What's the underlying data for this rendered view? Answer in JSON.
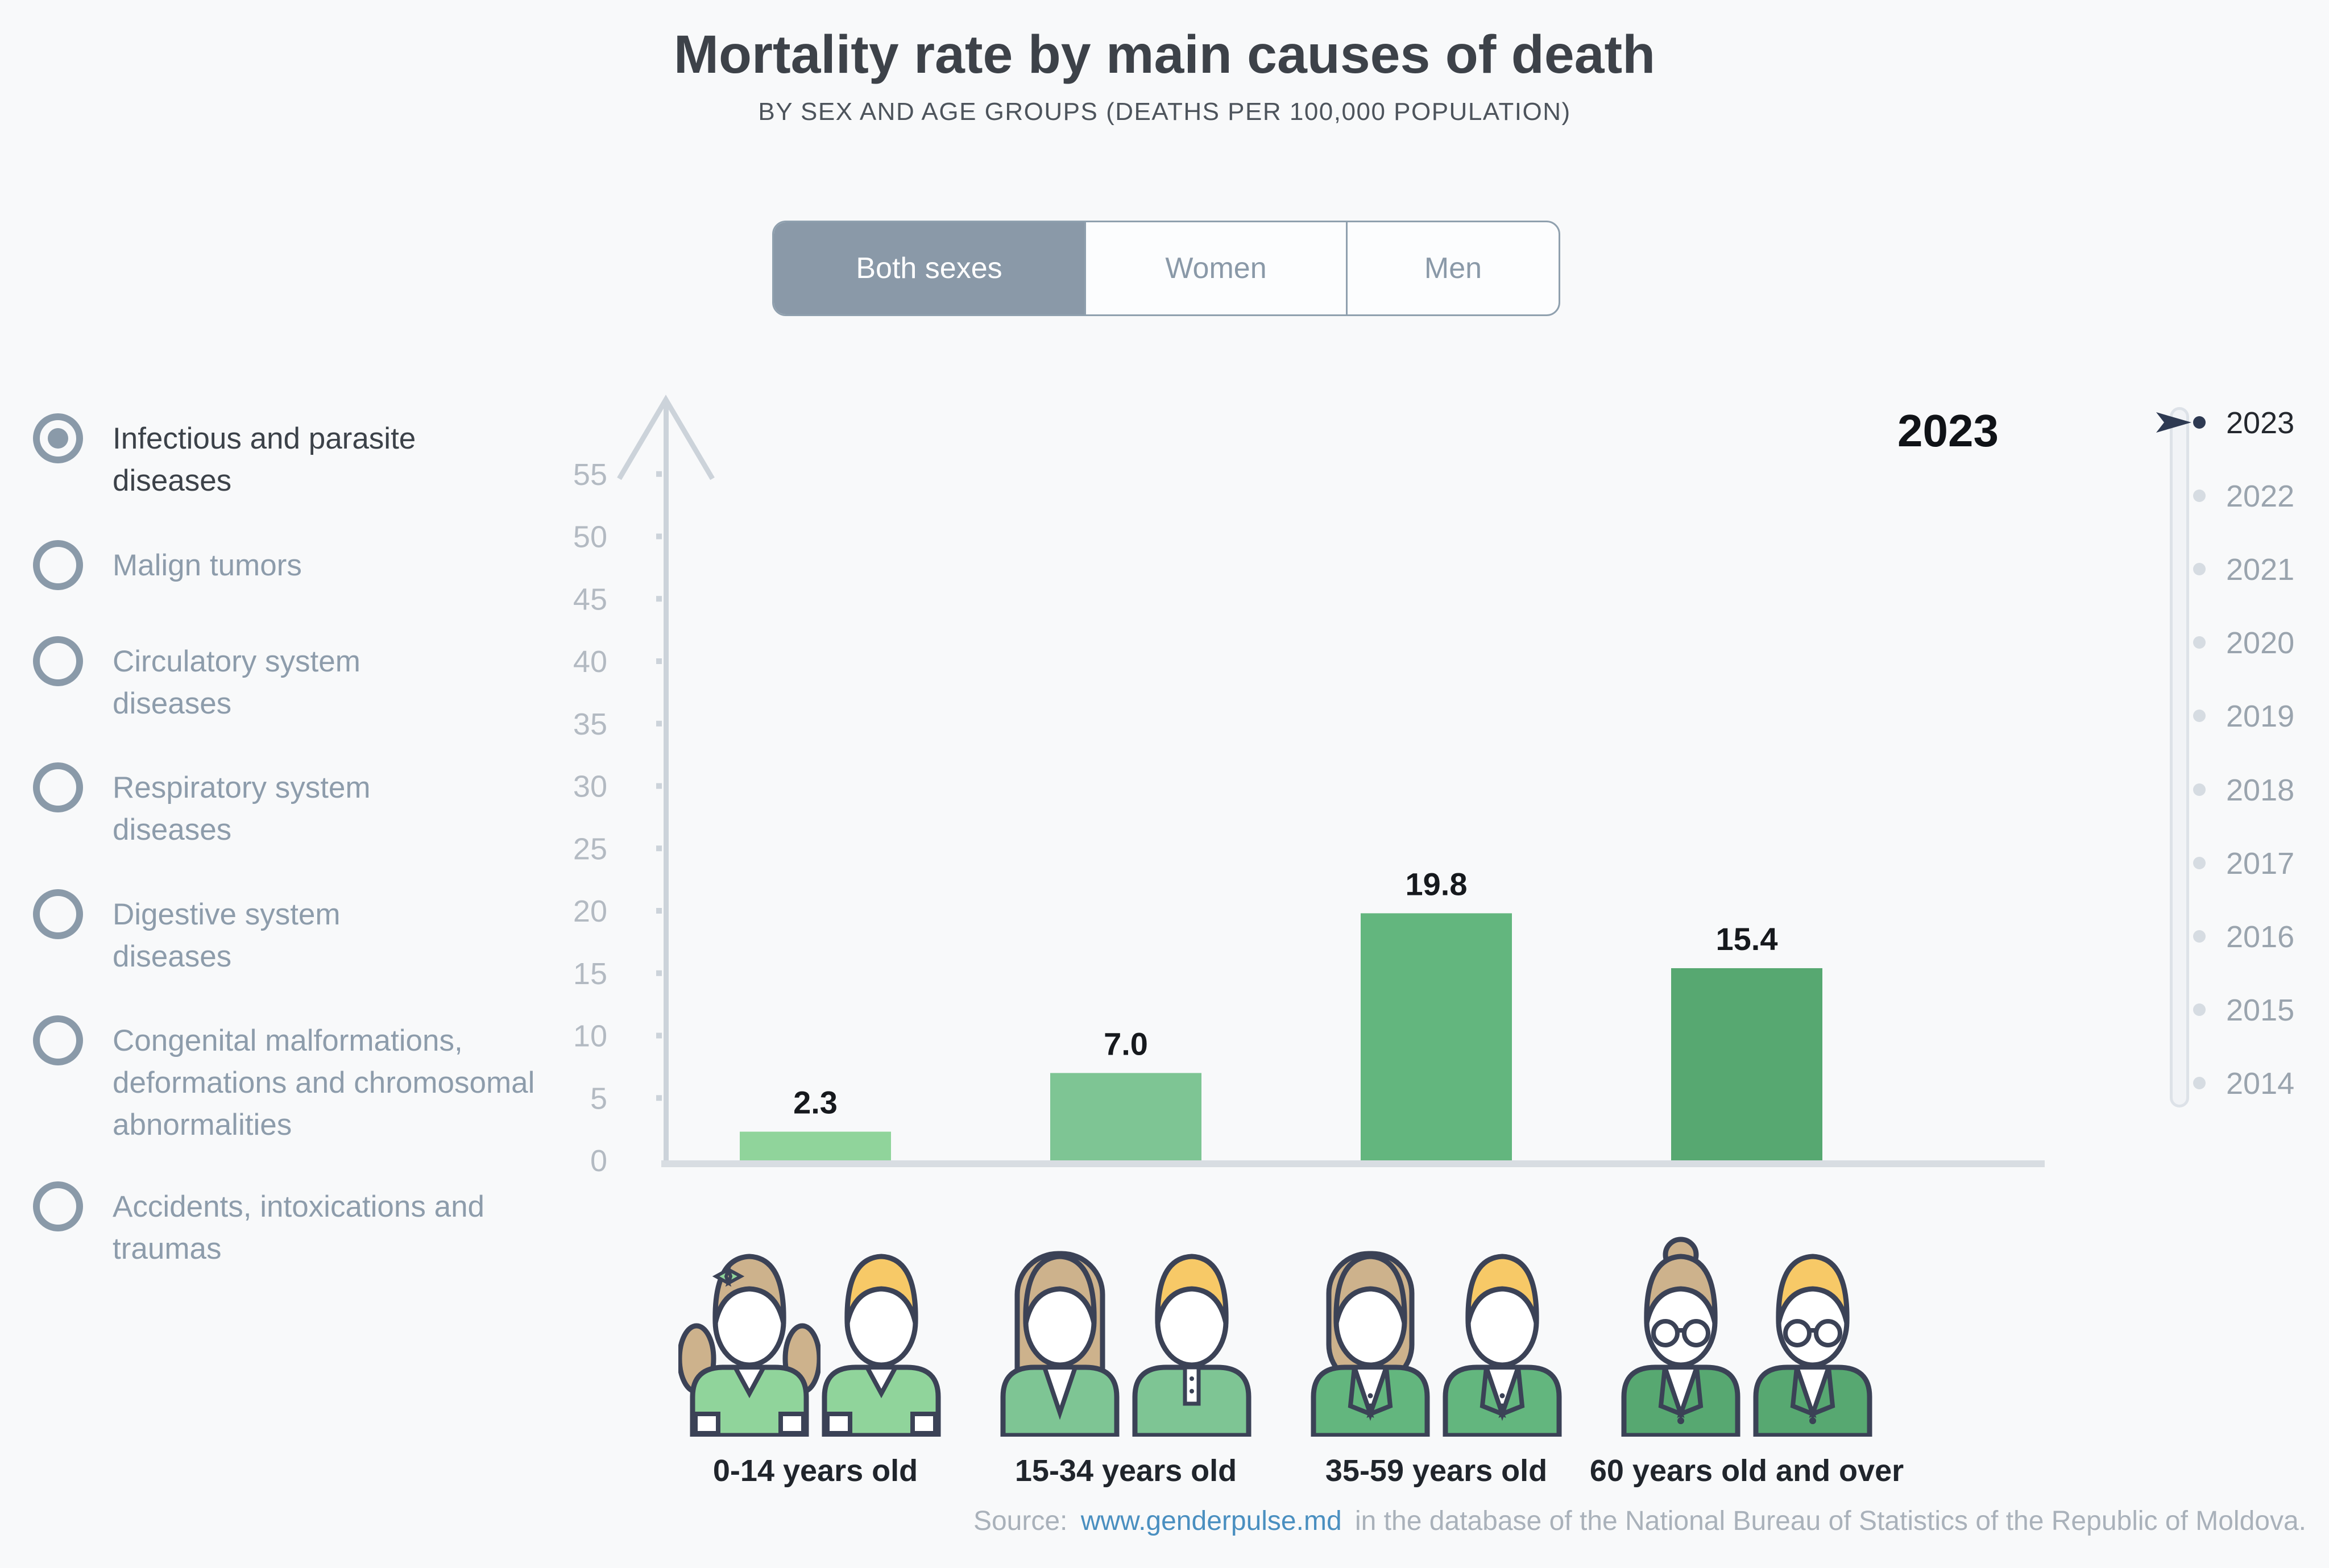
{
  "title": "Mortality rate by main causes of death",
  "subtitle": "BY SEX AND AGE GROUPS (DEATHS PER 100,000 POPULATION)",
  "sex_tabs": [
    {
      "label": "Both sexes",
      "selected": true
    },
    {
      "label": "Women",
      "selected": false
    },
    {
      "label": "Men",
      "selected": false
    }
  ],
  "causes": [
    {
      "label": "Infectious and parasite\ndiseases",
      "selected": true
    },
    {
      "label": "Malign tumors",
      "selected": false
    },
    {
      "label": "Circulatory system\ndiseases",
      "selected": false
    },
    {
      "label": "Respiratory system\ndiseases",
      "selected": false
    },
    {
      "label": "Digestive system\ndiseases",
      "selected": false
    },
    {
      "label": "Congenital malformations,\ndeformations and chromosomal\nabnormalities",
      "selected": false
    },
    {
      "label": "Accidents, intoxications and\ntraumas",
      "selected": false
    }
  ],
  "selected_year": "2023",
  "timeline_years": [
    "2023",
    "2022",
    "2021",
    "2020",
    "2019",
    "2018",
    "2017",
    "2016",
    "2015",
    "2014"
  ],
  "chart_data": {
    "type": "bar",
    "title": "Mortality rate by main causes of death",
    "categories": [
      "0-14 years old",
      "15-34 years old",
      "35-59 years old",
      "60 years old and over"
    ],
    "values": [
      2.3,
      7.0,
      19.8,
      15.4
    ],
    "value_labels": [
      "2.3",
      "7.0",
      "19.8",
      "15.4"
    ],
    "bar_colors": [
      "#90d49b",
      "#7ec594",
      "#63b67e",
      "#57a871"
    ],
    "xlabel": "",
    "ylabel": "",
    "ylim": [
      0,
      55
    ],
    "ytick_step": 5,
    "grid": false
  },
  "source": {
    "prefix": "Source:",
    "link_text": "www.genderpulse.md",
    "suffix": "in the database of the National Bureau of Statistics of the Republic of Moldova."
  },
  "colors": {
    "background": "#f8f9fa",
    "accent_blue_gray": "#8a9aa9",
    "axis": "#ccd3da",
    "baseline": "#d8dde2",
    "tick_label": "#b3bac2",
    "value_label": "#16191d",
    "year_inactive": "#9aa4ae",
    "year_active": "#24282e",
    "marker_navy": "#2e3a52",
    "link": "#4a8fc0",
    "source_text": "#a9b1ba",
    "hair_female": "#cdb28c",
    "hair_male": "#f7c967",
    "outline": "#3b4256"
  }
}
